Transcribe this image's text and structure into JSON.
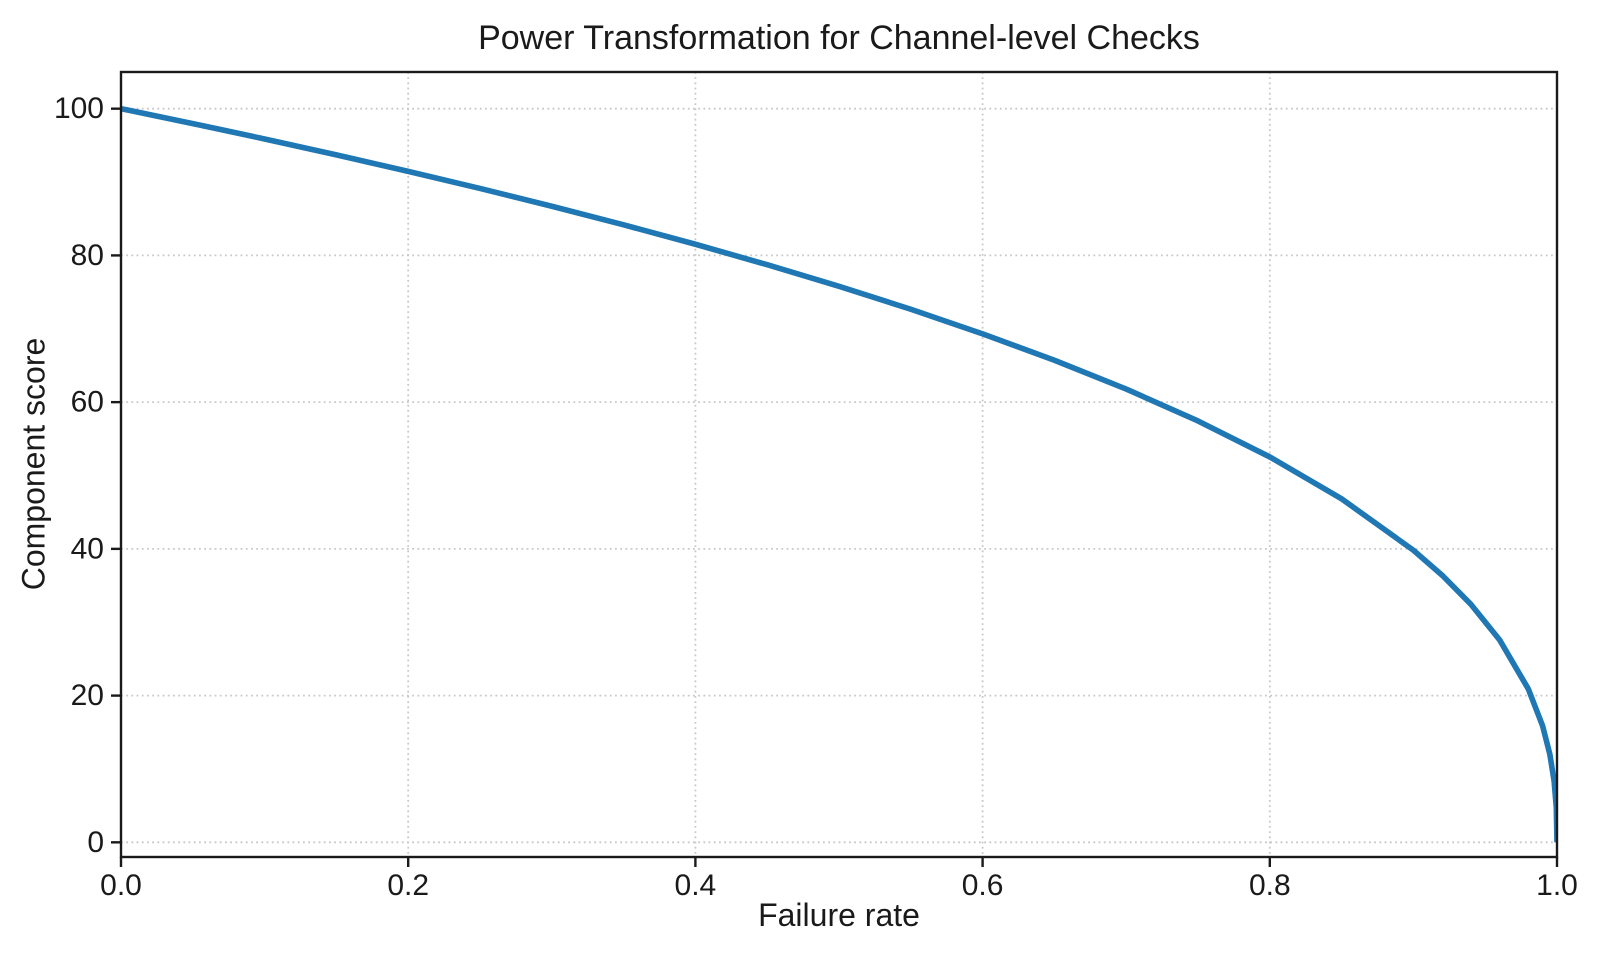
{
  "chart_data": {
    "type": "line",
    "title": "Power Transformation for Channel-level Checks",
    "xlabel": "Failure rate",
    "ylabel": "Component score",
    "xlim": [
      0.0,
      1.0
    ],
    "ylim": [
      -2,
      105
    ],
    "xticks": [
      0.0,
      0.2,
      0.4,
      0.6,
      0.8,
      1.0
    ],
    "xtick_labels": [
      "0.0",
      "0.2",
      "0.4",
      "0.6",
      "0.8",
      "1.0"
    ],
    "yticks": [
      0,
      20,
      40,
      60,
      80,
      100
    ],
    "ytick_labels": [
      "0",
      "20",
      "40",
      "60",
      "80",
      "100"
    ],
    "grid": {
      "visible": true,
      "style": "dotted"
    },
    "legend": "none",
    "series": [
      {
        "name": "component_score_vs_failure_rate",
        "color": "#1f77b4",
        "x": [
          0.0,
          0.025,
          0.05,
          0.075,
          0.1,
          0.15,
          0.2,
          0.25,
          0.3,
          0.35,
          0.4,
          0.45,
          0.5,
          0.55,
          0.6,
          0.65,
          0.7,
          0.75,
          0.8,
          0.85,
          0.9,
          0.92,
          0.94,
          0.96,
          0.98,
          0.99,
          0.995,
          0.998,
          0.9995,
          1.0
        ],
        "y": [
          100.0,
          98.99,
          97.97,
          96.93,
          95.87,
          93.71,
          91.46,
          89.13,
          86.7,
          84.17,
          81.52,
          78.73,
          75.79,
          72.66,
          69.31,
          65.71,
          61.78,
          57.43,
          52.53,
          46.82,
          39.81,
          36.41,
          32.45,
          27.6,
          20.91,
          15.85,
          12.01,
          8.33,
          4.78,
          0.0
        ]
      }
    ]
  },
  "style": {
    "line_color": "#1f77b4",
    "grid_color": "#c8c8c8",
    "axis_color": "#1a1a1a",
    "text_color": "#1a1a1a",
    "background": "#ffffff"
  }
}
